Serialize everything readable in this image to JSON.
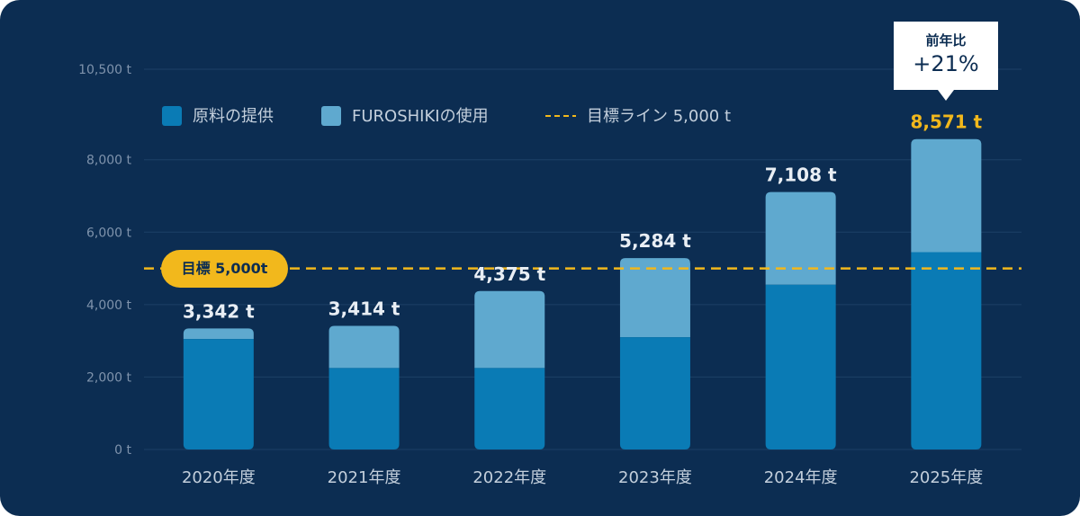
{
  "chart_data": {
    "type": "bar",
    "stacked": true,
    "categories": [
      "2020年度",
      "2021年度",
      "2022年度",
      "2023年度",
      "2024年度",
      "2025年度"
    ],
    "series": [
      {
        "name": "原料の提供",
        "color": "#0a7bb5",
        "values": [
          3050,
          2250,
          2250,
          3100,
          4550,
          5450
        ]
      },
      {
        "name": "FUROSHIKIの使用",
        "color": "#5fa9cf",
        "values": [
          292,
          1164,
          2125,
          2184,
          2558,
          3121
        ]
      }
    ],
    "totals": [
      3342,
      3414,
      4375,
      5284,
      7108,
      8571
    ],
    "total_labels": [
      "3,342 t",
      "3,414 t",
      "4,375 t",
      "5,284 t",
      "7,108 t",
      "8,571 t"
    ],
    "target": {
      "value": 5000,
      "legend_label": "目標ライン 5,000 t",
      "badge_label": "目標 5,000t",
      "color": "#f2b81c"
    },
    "yticks": [
      0,
      2000,
      4000,
      6000,
      8000,
      10500
    ],
    "ytick_labels": [
      "0 t",
      "2,000 t",
      "4,000 t",
      "6,000 t",
      "8,000 t",
      "10,500 t"
    ],
    "ylim": [
      0,
      10500
    ],
    "legend_position": "top-left",
    "callout": {
      "title": "前年比",
      "value": "+21%",
      "category": "2025年度"
    },
    "highlight_category": "2025年度",
    "highlight_color": "#f2b81c"
  }
}
